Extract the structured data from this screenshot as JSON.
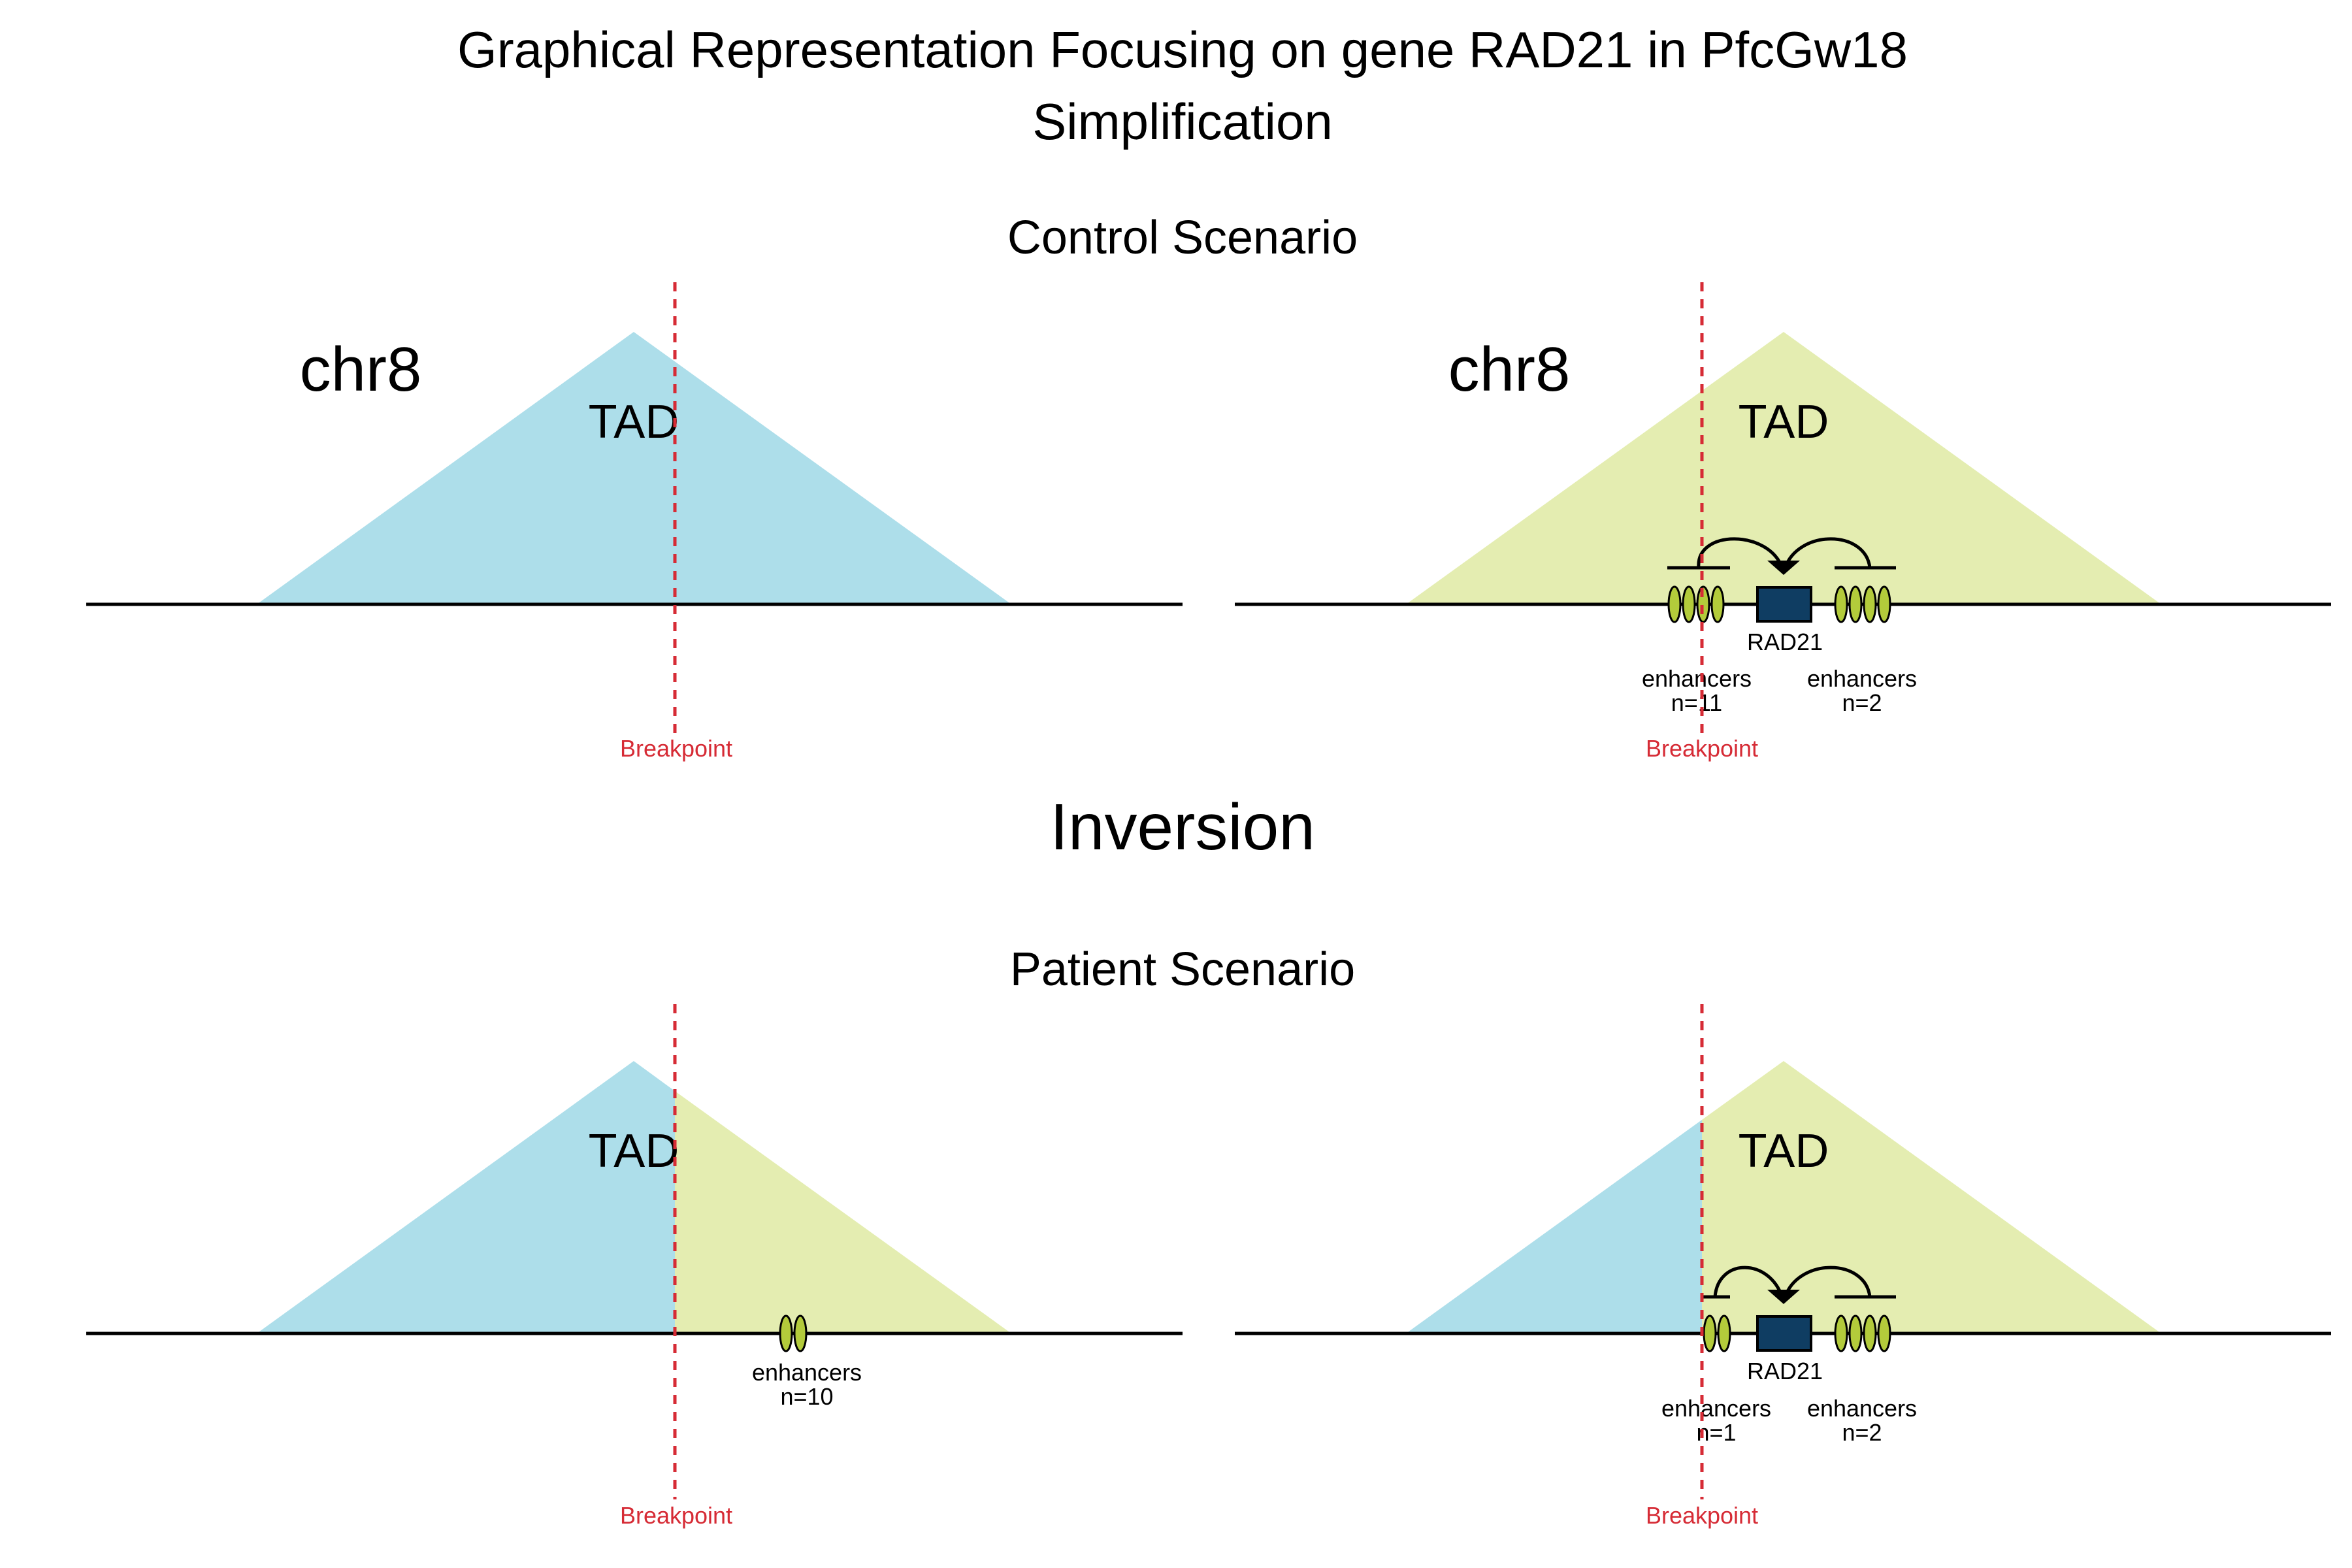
{
  "title_line1": "Graphical Representation Focusing on gene RAD21 in PfcGw18",
  "title_line2": "Simplification",
  "control_title": "Control Scenario",
  "patient_title": "Patient Scenario",
  "event_label": "Inversion",
  "colors": {
    "tad_left": "#ADDEEA",
    "tad_right": "#E4EDB1",
    "enhancer": "#B3CB3B",
    "gene": "#0F3D62",
    "breakpoint": "#D62B35",
    "event": "#D63E4A"
  },
  "control": {
    "left": {
      "chrom_label": "chr8",
      "tad_label": "TAD",
      "breakpoint_label": "Breakpoint"
    },
    "right": {
      "chrom_label": "chr8",
      "tad_label": "TAD",
      "gene_label": "RAD21",
      "enhancers_left": {
        "label": "enhancers",
        "count": "n=11"
      },
      "enhancers_right": {
        "label": "enhancers",
        "count": "n=2"
      },
      "breakpoint_label": "Breakpoint"
    }
  },
  "patient": {
    "left": {
      "tad_label": "TAD",
      "enhancers": {
        "label": "enhancers",
        "count": "n=10"
      },
      "breakpoint_label": "Breakpoint"
    },
    "right": {
      "tad_label": "TAD",
      "gene_label": "RAD21",
      "enhancers_left": {
        "label": "enhancers",
        "count": "n=1"
      },
      "enhancers_right": {
        "label": "enhancers",
        "count": "n=2"
      },
      "breakpoint_label": "Breakpoint"
    }
  }
}
